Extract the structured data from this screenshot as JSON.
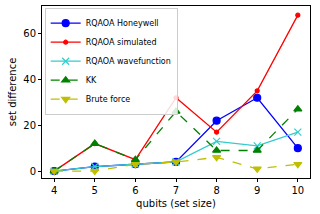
{
  "chart_data": {
    "type": "line",
    "x_label": "qubits (set size)",
    "y_label": "set difference",
    "x": [
      4,
      5,
      6,
      7,
      8,
      9,
      10
    ],
    "series": [
      {
        "name": "RQAOA Honeywell",
        "color": "#0000ff",
        "marker": "circle",
        "line_style": "solid",
        "values": [
          0,
          2,
          3,
          4,
          22,
          32,
          10
        ]
      },
      {
        "name": "RQAOA simulated",
        "color": "#ff0000",
        "marker": "dot",
        "line_style": "solid",
        "values": [
          0,
          12,
          5,
          32,
          17,
          35,
          68
        ]
      },
      {
        "name": "RQAOA wavefunction",
        "color": "#33cccc",
        "marker": "x",
        "line_style": "solid",
        "values": [
          0,
          2,
          3,
          4,
          13,
          11,
          17
        ]
      },
      {
        "name": "KK",
        "color": "#008000",
        "marker": "triangle-up",
        "line_style": "dashed",
        "values": [
          0,
          12,
          5,
          26,
          9,
          9,
          27
        ]
      },
      {
        "name": "Brute force",
        "color": "#bfbf00",
        "marker": "triangle-down",
        "line_style": "dashed",
        "values": [
          0,
          0,
          3,
          4,
          6,
          1,
          3
        ]
      }
    ],
    "xlim": [
      3.7,
      10.3
    ],
    "ylim": [
      -3,
      72
    ],
    "xticks": [
      4,
      5,
      6,
      7,
      8,
      9,
      10
    ],
    "yticks": [
      0,
      20,
      40,
      60
    ],
    "grid": false,
    "legend": "upper left"
  }
}
